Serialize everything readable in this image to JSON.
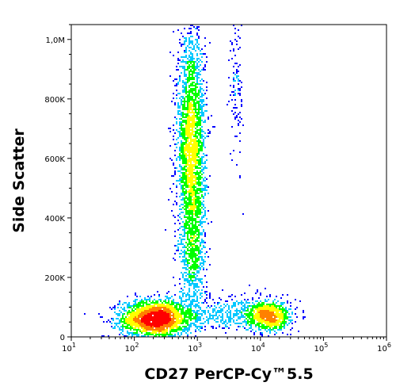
{
  "chart_data": {
    "type": "scatter",
    "subtype": "flow-cytometry-density-dot-plot",
    "xlabel": "CD27 PerCP-Cy™5.5",
    "ylabel": "Side Scatter",
    "x_scale": "log",
    "x_range": [
      10,
      1000000
    ],
    "y_range": [
      0,
      1050000
    ],
    "x_ticks": [
      {
        "value": 10,
        "base": "10",
        "exp": "1"
      },
      {
        "value": 100,
        "base": "10",
        "exp": "2"
      },
      {
        "value": 1000,
        "base": "10",
        "exp": "3"
      },
      {
        "value": 10000,
        "base": "10",
        "exp": "4"
      },
      {
        "value": 100000,
        "base": "10",
        "exp": "5"
      },
      {
        "value": 1000000,
        "base": "10",
        "exp": "6"
      }
    ],
    "y_ticks": [
      {
        "value": 0,
        "label": "0"
      },
      {
        "value": 200000,
        "label": "200K"
      },
      {
        "value": 400000,
        "label": "400K"
      },
      {
        "value": 600000,
        "label": "600K"
      },
      {
        "value": 800000,
        "label": "800K"
      },
      {
        "value": 1000000,
        "label": "1,0M"
      }
    ],
    "grid": false,
    "legend": "none",
    "color_scale": [
      "#0000ff",
      "#00c8ff",
      "#00ff00",
      "#ffff00",
      "#ff8000",
      "#ff0000"
    ],
    "populations": [
      {
        "x_center": 220,
        "y_center": 60000,
        "x_spread_decades": 0.28,
        "y_spread": 32000,
        "count": 2600
      },
      {
        "x_center": 800,
        "y_center": 640000,
        "x_spread_decades": 0.11,
        "y_spread": 190000,
        "count": 2600
      },
      {
        "x_center": 850,
        "y_center": 300000,
        "x_spread_decades": 0.1,
        "y_spread": 120000,
        "count": 700
      },
      {
        "x_center": 14000,
        "y_center": 70000,
        "x_spread_decades": 0.17,
        "y_spread": 25000,
        "count": 900
      },
      {
        "x_center": 3500,
        "y_center": 80000,
        "x_spread_decades": 0.3,
        "y_spread": 30000,
        "count": 350
      },
      {
        "x_center": 4200,
        "y_center": 850000,
        "x_spread_decades": 0.05,
        "y_spread": 140000,
        "count": 120
      }
    ]
  }
}
